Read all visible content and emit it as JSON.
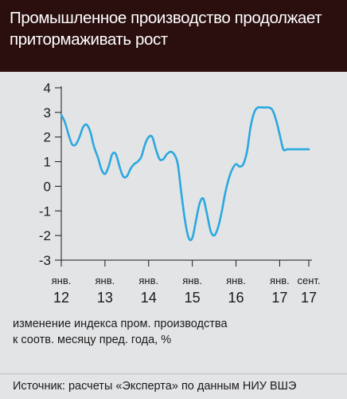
{
  "title": "Промышленное производство продолжает притормаживать рост",
  "caption_line1": "изменение индекса пром. производства",
  "caption_line2": "к соотв. месяцу пред. года, %",
  "source": "Источник: расчеты «Эксперта» по данным НИУ ВШЭ",
  "colors": {
    "header_bg": "#2b0f0f",
    "background": "#e3e4e6",
    "line": "#2aa8df",
    "axis": "#1a1a1a"
  },
  "chart_data": {
    "type": "line",
    "title": "Промышленное производство продолжает притормаживать рост",
    "ylabel": "изменение индекса пром. производства к соотв. месяцу пред. года, %",
    "ylim": [
      -3,
      4
    ],
    "yticks": [
      4,
      3,
      2,
      1,
      0,
      -1,
      -2,
      -3
    ],
    "ytick_labels": [
      "4",
      "3",
      "2",
      "1",
      "0",
      "-1",
      "-2",
      "-3"
    ],
    "grid": false,
    "xtick_labels": [
      {
        "month": "янв.",
        "year": "12",
        "x": 0
      },
      {
        "month": "янв.",
        "year": "13",
        "x": 12
      },
      {
        "month": "янв.",
        "year": "14",
        "x": 24
      },
      {
        "month": "янв.",
        "year": "15",
        "x": 36
      },
      {
        "month": "янв.",
        "year": "16",
        "x": 48
      },
      {
        "month": "янв.",
        "year": "17",
        "x": 60
      },
      {
        "month": "сент.",
        "year": "17",
        "x": 68
      }
    ],
    "series": [
      {
        "x": [
          0,
          1,
          2,
          3,
          4,
          5,
          6,
          7,
          8,
          9,
          10,
          11,
          12,
          13,
          14,
          15,
          16,
          17,
          18,
          19,
          20,
          21,
          22,
          23,
          24,
          25,
          26,
          27,
          28,
          29,
          30,
          31,
          32,
          33,
          34,
          35,
          36,
          37,
          38,
          39,
          40,
          41,
          42,
          43,
          44,
          45,
          46,
          47,
          48,
          49,
          50,
          51,
          52,
          53,
          54,
          55,
          56,
          57,
          58,
          59,
          60,
          61,
          62,
          63,
          64,
          65,
          66,
          67,
          68
        ],
        "values": [
          2.9,
          2.6,
          2.1,
          1.7,
          1.7,
          2.0,
          2.4,
          2.5,
          2.2,
          1.6,
          1.2,
          0.7,
          0.5,
          0.8,
          1.3,
          1.3,
          0.8,
          0.4,
          0.4,
          0.7,
          0.9,
          1.0,
          1.2,
          1.7,
          2.0,
          2.0,
          1.5,
          1.1,
          1.1,
          1.3,
          1.4,
          1.3,
          0.9,
          -0.3,
          -1.4,
          -2.1,
          -2.1,
          -1.4,
          -0.7,
          -0.5,
          -1.1,
          -1.8,
          -2.0,
          -1.7,
          -1.1,
          -0.3,
          0.3,
          0.7,
          0.9,
          0.8,
          0.9,
          1.4,
          2.4,
          3.0,
          3.2,
          3.2,
          3.2,
          3.2,
          3.1,
          2.7,
          2.1,
          1.5,
          1.5,
          1.5,
          1.5,
          1.5,
          1.5,
          1.5,
          1.5
        ]
      }
    ]
  }
}
